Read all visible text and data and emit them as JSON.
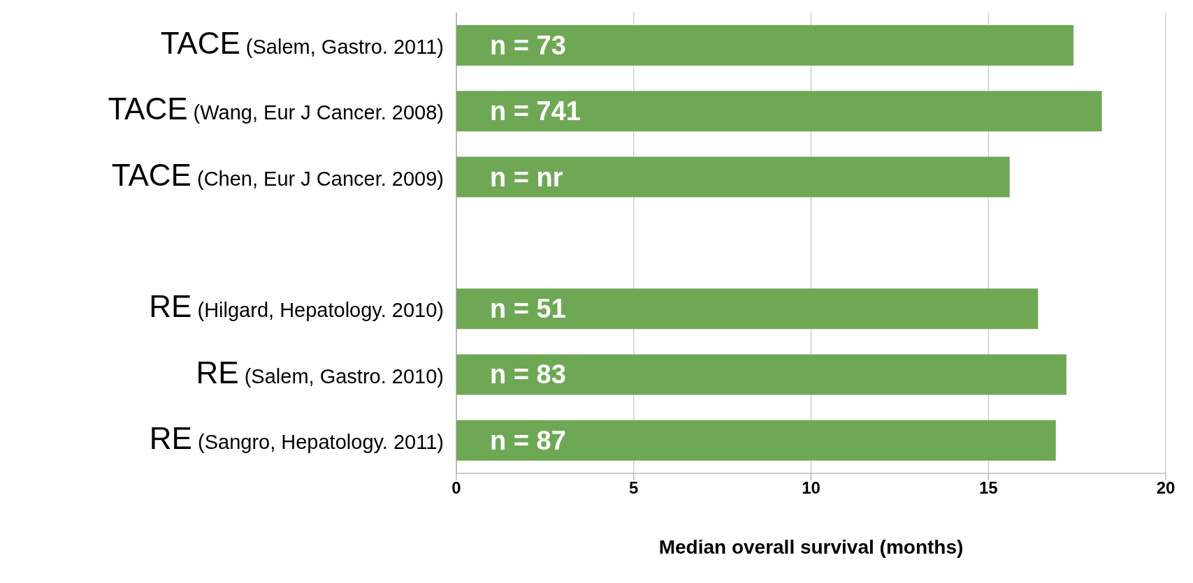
{
  "chart_data": {
    "type": "bar",
    "orientation": "horizontal",
    "xlabel": "Median overall survival (months)",
    "categories": [
      "TACE (Salem, Gastro. 2011)",
      "TACE (Wang, Eur J Cancer. 2008)",
      "TACE (Chen, Eur J Cancer. 2009)",
      null,
      "RE (Hilgard, Hepatology. 2010)",
      "RE (Salem, Gastro. 2010)",
      "RE (Sangro, Hepatology. 2011)"
    ],
    "values": [
      17.4,
      18.2,
      15.6,
      null,
      16.4,
      17.2,
      16.9
    ],
    "annotations": [
      "n = 73",
      "n = 741",
      "n = nr",
      "n = 51",
      "n = 83",
      "n = 87"
    ],
    "color": "#6fa855",
    "xlim": [
      0,
      20
    ],
    "xticks": [
      0,
      5,
      10,
      15,
      20
    ],
    "grid": "x"
  }
}
